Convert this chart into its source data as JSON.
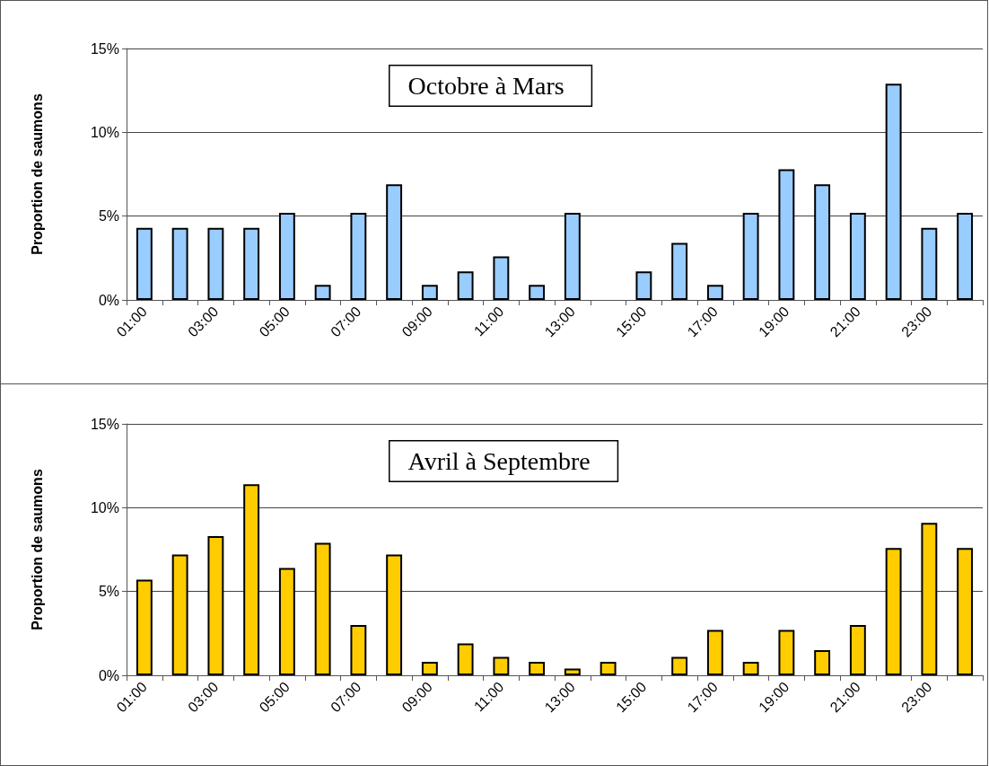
{
  "chart_data": [
    {
      "type": "bar",
      "ylabel": "Proportion de saumons",
      "annotations": [
        "Octobre à Mars"
      ],
      "categories": [
        "01:00",
        null,
        "03:00",
        null,
        "05:00",
        null,
        "07:00",
        null,
        "09:00",
        null,
        "11:00",
        null,
        "13:00",
        null,
        "15:00",
        null,
        "17:00",
        null,
        "19:00",
        null,
        "21:00",
        null,
        "23:00",
        null
      ],
      "color": "#99ccff",
      "values": [
        4.3,
        4.3,
        4.3,
        4.3,
        5.2,
        0.9,
        5.2,
        6.9,
        0.9,
        1.7,
        2.6,
        0.9,
        5.2,
        0,
        1.7,
        3.4,
        0.9,
        5.2,
        7.8,
        6.9,
        5.2,
        12.9,
        4.3,
        5.2
      ],
      "ylim": [
        0,
        15
      ],
      "yticks": [
        {
          "value": 0,
          "label": "0%"
        },
        {
          "value": 5,
          "label": "5%"
        },
        {
          "value": 10,
          "label": "10%"
        },
        {
          "value": 15,
          "label": "15%"
        }
      ],
      "grid": "y"
    },
    {
      "type": "bar",
      "ylabel": "Proportion de saumons",
      "annotations": [
        "Avril à Septembre"
      ],
      "categories": [
        "01:00",
        null,
        "03:00",
        null,
        "05:00",
        null,
        "07:00",
        null,
        "09:00",
        null,
        "11:00",
        null,
        "13:00",
        null,
        "15:00",
        null,
        "17:00",
        null,
        "19:00",
        null,
        "21:00",
        null,
        "23:00",
        null
      ],
      "color": "#ffcc00",
      "values": [
        5.7,
        7.2,
        8.3,
        11.4,
        6.4,
        7.9,
        3.0,
        7.2,
        0.8,
        1.9,
        1.1,
        0.8,
        0.4,
        0.8,
        0,
        1.1,
        2.7,
        0.8,
        2.7,
        1.5,
        3.0,
        7.6,
        9.1,
        7.6
      ],
      "ylim": [
        0,
        15
      ],
      "yticks": [
        {
          "value": 0,
          "label": "0%"
        },
        {
          "value": 5,
          "label": "5%"
        },
        {
          "value": 10,
          "label": "10%"
        },
        {
          "value": 15,
          "label": "15%"
        }
      ],
      "grid": "y"
    }
  ]
}
